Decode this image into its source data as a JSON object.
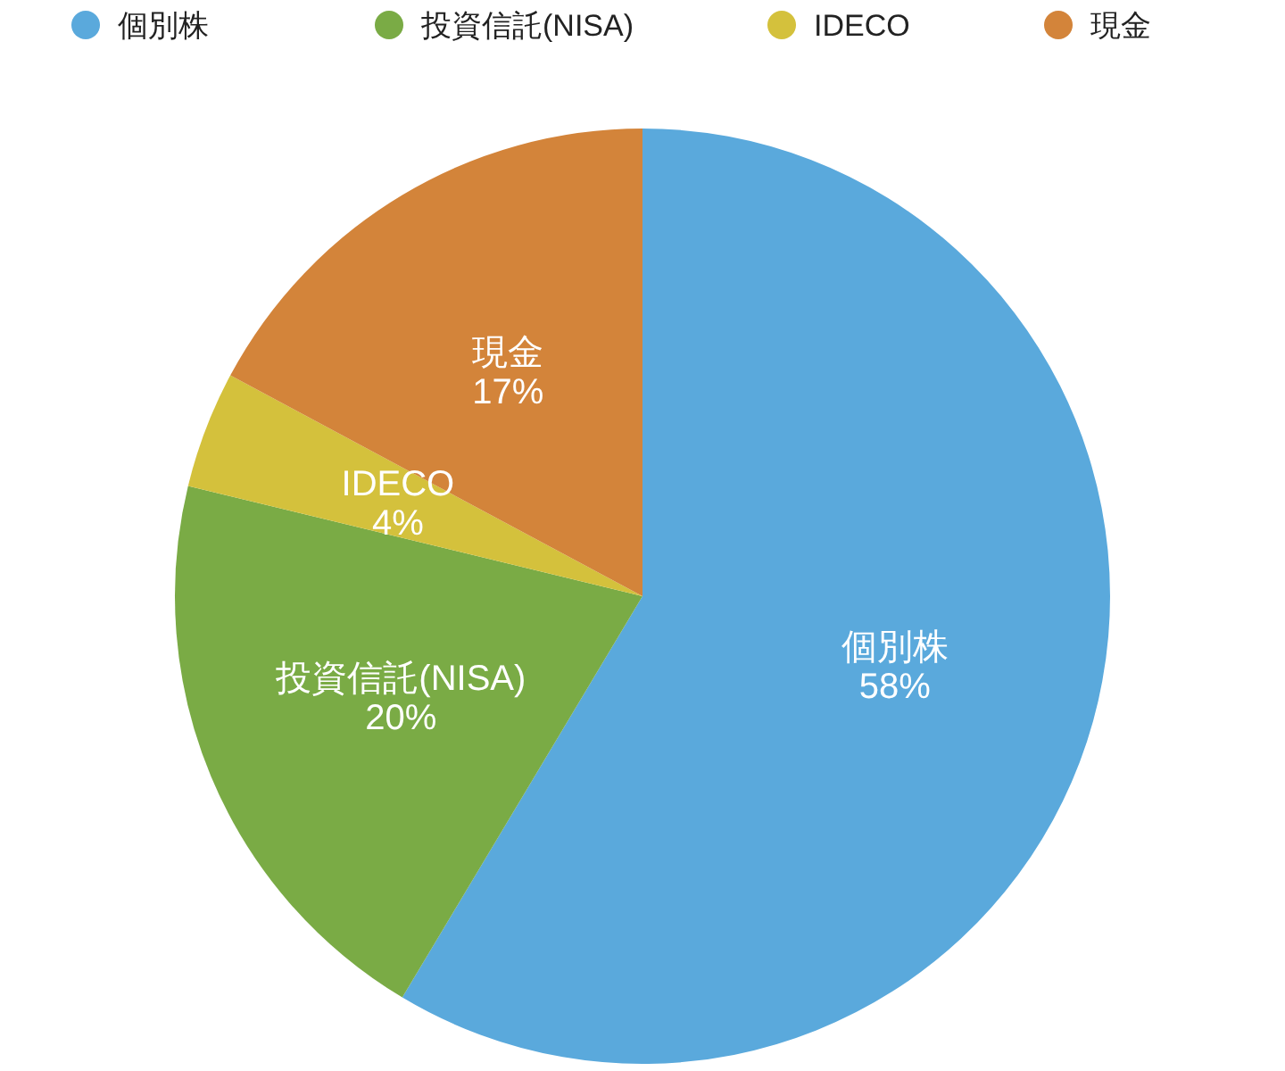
{
  "chart_data": {
    "type": "pie",
    "categories": [
      "個別株",
      "投資信託(NISA)",
      "IDECO",
      "現金"
    ],
    "values": [
      58,
      20,
      4,
      17
    ],
    "colors": [
      "#5aa9dc",
      "#7aab45",
      "#d4c13c",
      "#d3843a"
    ],
    "data_labels": true,
    "value_labels": [
      "58%",
      "20%",
      "4%",
      "17%"
    ],
    "legend": "top"
  }
}
